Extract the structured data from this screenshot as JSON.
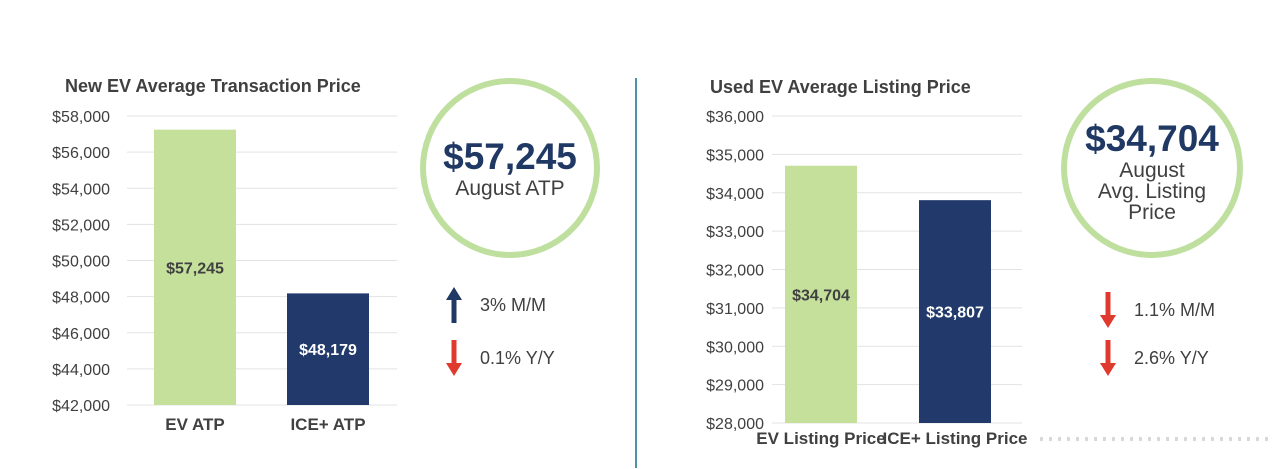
{
  "left": {
    "bubble": {
      "value": "$57,245",
      "label": "August ATP"
    },
    "changes": [
      {
        "direction": "up",
        "text": "3% M/M"
      },
      {
        "direction": "down",
        "text": "0.1% Y/Y"
      }
    ]
  },
  "right": {
    "bubble": {
      "value": "$34,704",
      "label_line1": "August",
      "label_line2": "Avg. Listing",
      "label_line3": "Price"
    },
    "changes": [
      {
        "direction": "down",
        "text": "1.1% M/M"
      },
      {
        "direction": "down",
        "text": "2.6% Y/Y"
      }
    ]
  },
  "colors": {
    "ev_bar": "#c4e09a",
    "ice_bar": "#223a6b",
    "bubble_ring": "#bfdf9f",
    "up_arrow": "#1f3864",
    "down_arrow": "#e03a2f",
    "divider": "#4f93a6"
  },
  "chart_data": [
    {
      "type": "bar",
      "title": "New EV Average Transaction Price",
      "categories": [
        "EV ATP",
        "ICE+ ATP"
      ],
      "values": [
        57245,
        48179
      ],
      "data_labels": [
        "$57,245",
        "$48,179"
      ],
      "ylim": [
        42000,
        58000
      ],
      "yticks": [
        42000,
        44000,
        46000,
        48000,
        50000,
        52000,
        54000,
        56000,
        58000
      ],
      "ytick_labels": [
        "$42,000",
        "$44,000",
        "$46,000",
        "$48,000",
        "$50,000",
        "$52,000",
        "$54,000",
        "$56,000",
        "$58,000"
      ],
      "grid": true
    },
    {
      "type": "bar",
      "title": "Used EV Average Listing Price",
      "categories": [
        "EV Listing Price",
        "ICE+ Listing Price"
      ],
      "values": [
        34704,
        33807
      ],
      "data_labels": [
        "$34,704",
        "$33,807"
      ],
      "ylim": [
        28000,
        36000
      ],
      "yticks": [
        28000,
        29000,
        30000,
        31000,
        32000,
        33000,
        34000,
        35000,
        36000
      ],
      "ytick_labels": [
        "$28,000",
        "$29,000",
        "$30,000",
        "$31,000",
        "$32,000",
        "$33,000",
        "$34,000",
        "$35,000",
        "$36,000"
      ],
      "grid": true
    }
  ]
}
